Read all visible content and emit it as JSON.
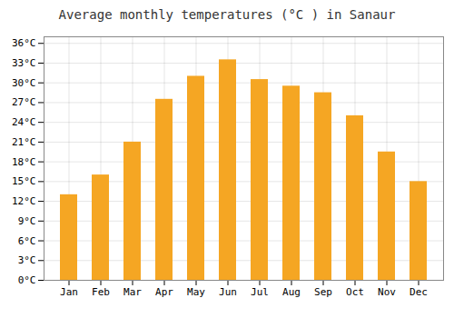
{
  "chart_data": {
    "type": "bar",
    "title": "Average monthly temperatures (°C ) in Sanaur",
    "categories": [
      "Jan",
      "Feb",
      "Mar",
      "Apr",
      "May",
      "Jun",
      "Jul",
      "Aug",
      "Sep",
      "Oct",
      "Nov",
      "Dec"
    ],
    "values": [
      13,
      16,
      21,
      27.5,
      31,
      33.5,
      30.5,
      29.5,
      28.5,
      25,
      19.5,
      15
    ],
    "color": "#F5A623",
    "ylim": [
      0,
      37
    ],
    "yticks": [
      {
        "value": 0,
        "label": "0°C"
      },
      {
        "value": 3,
        "label": "3°C"
      },
      {
        "value": 6,
        "label": "6°C"
      },
      {
        "value": 9,
        "label": "9°C"
      },
      {
        "value": 12,
        "label": "12°C"
      },
      {
        "value": 15,
        "label": "15°C"
      },
      {
        "value": 18,
        "label": "18°C"
      },
      {
        "value": 21,
        "label": "21°C"
      },
      {
        "value": 24,
        "label": "24°C"
      },
      {
        "value": 27,
        "label": "27°C"
      },
      {
        "value": 30,
        "label": "30°C"
      },
      {
        "value": 33,
        "label": "33°C"
      },
      {
        "value": 36,
        "label": "36°C"
      }
    ],
    "grid": true
  }
}
